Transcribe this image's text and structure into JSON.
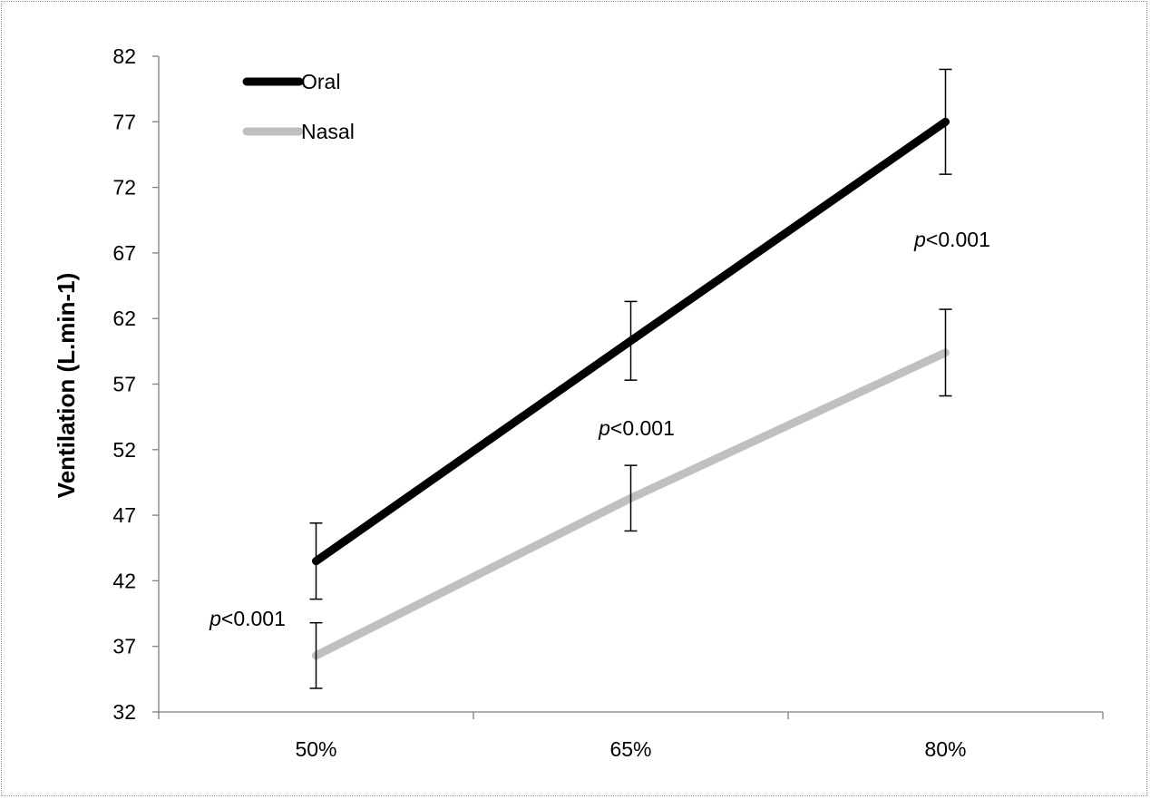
{
  "chart_data": {
    "type": "line",
    "title": "",
    "xlabel": "",
    "ylabel": "Ventilation (L.min-1)",
    "categories": [
      "50%",
      "65%",
      "80%"
    ],
    "ylim": [
      32,
      82
    ],
    "yticks": [
      32,
      37,
      42,
      47,
      52,
      57,
      62,
      67,
      72,
      77,
      82
    ],
    "ytick_labels": [
      "32",
      "37",
      "42",
      "47",
      "52",
      "57",
      "62",
      "67",
      "72",
      "77",
      "82"
    ],
    "grid": false,
    "legend_position": "top-left",
    "series": [
      {
        "name": "Oral",
        "color": "#000000",
        "values": [
          43.5,
          60.3,
          77.0
        ],
        "error": [
          2.9,
          3.0,
          4.0
        ]
      },
      {
        "name": "Nasal",
        "color": "#c0c0c0",
        "values": [
          36.3,
          48.3,
          59.4
        ],
        "error": [
          2.5,
          2.5,
          3.3
        ]
      }
    ],
    "annotations": [
      {
        "category": "50%",
        "prefix": "p",
        "text": "<0.001"
      },
      {
        "category": "65%",
        "prefix": "p",
        "text": "<0.001"
      },
      {
        "category": "80%",
        "prefix": "p",
        "text": "<0.001"
      }
    ]
  }
}
